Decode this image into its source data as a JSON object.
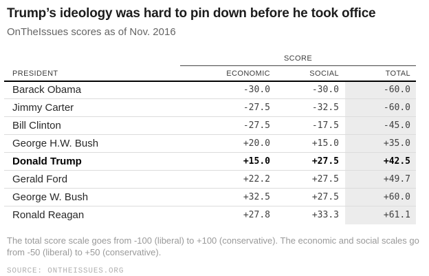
{
  "header": {
    "title": "Trump’s ideology was hard to pin down before he took office",
    "subtitle": "OnTheIssues scores as of Nov. 2016"
  },
  "table": {
    "score_group_label": "SCORE",
    "columns": {
      "president": "PRESIDENT",
      "economic": "ECONOMIC",
      "social": "SOCIAL",
      "total": "TOTAL"
    },
    "rows": [
      {
        "president": "Barack Obama",
        "economic": "-30.0",
        "social": "-30.0",
        "total": "-60.0",
        "bold": false
      },
      {
        "president": "Jimmy Carter",
        "economic": "-27.5",
        "social": "-32.5",
        "total": "-60.0",
        "bold": false
      },
      {
        "president": "Bill Clinton",
        "economic": "-27.5",
        "social": "-17.5",
        "total": "-45.0",
        "bold": false
      },
      {
        "president": "George H.W. Bush",
        "economic": "+20.0",
        "social": "+15.0",
        "total": "+35.0",
        "bold": false
      },
      {
        "president": "Donald Trump",
        "economic": "+15.0",
        "social": "+27.5",
        "total": "+42.5",
        "bold": true
      },
      {
        "president": "Gerald Ford",
        "economic": "+22.2",
        "social": "+27.5",
        "total": "+49.7",
        "bold": false
      },
      {
        "president": "George W. Bush",
        "economic": "+32.5",
        "social": "+27.5",
        "total": "+60.0",
        "bold": false
      },
      {
        "president": "Ronald Reagan",
        "economic": "+27.8",
        "social": "+33.3",
        "total": "+61.1",
        "bold": false
      }
    ]
  },
  "footer": {
    "note": "The total score scale goes from -100 (liberal) to +100 (conservative). The economic and social scales go from -50 (liberal) to +50 (conservative).",
    "source": "SOURCE: ONTHEISSUES.ORG"
  },
  "colors": {
    "title_text": "#1c1c1c",
    "subtitle_text": "#646464",
    "header_text": "#3c3c3c",
    "row_text": "#282828",
    "number_text": "#404040",
    "highlight_text": "#000000",
    "row_separator": "#dcdcdc",
    "header_rule": "#000000",
    "score_rule": "#444444",
    "total_column_bg": "#ececec",
    "note_text": "#999999",
    "source_text": "#b1b1b1"
  },
  "chart_data": {
    "type": "table",
    "title": "Trump’s ideology was hard to pin down before he took office",
    "subtitle": "OnTheIssues scores as of Nov. 2016",
    "columns": [
      "PRESIDENT",
      "ECONOMIC",
      "SOCIAL",
      "TOTAL"
    ],
    "column_group": {
      "label": "SCORE",
      "spans": [
        "ECONOMIC",
        "SOCIAL",
        "TOTAL"
      ]
    },
    "categories": [
      "Barack Obama",
      "Jimmy Carter",
      "Bill Clinton",
      "George H.W. Bush",
      "Donald Trump",
      "Gerald Ford",
      "George W. Bush",
      "Ronald Reagan"
    ],
    "series": [
      {
        "name": "Economic",
        "values": [
          -30.0,
          -27.5,
          -27.5,
          20.0,
          15.0,
          22.2,
          32.5,
          27.8
        ]
      },
      {
        "name": "Social",
        "values": [
          -30.0,
          -32.5,
          -17.5,
          15.0,
          27.5,
          27.5,
          27.5,
          33.3
        ]
      },
      {
        "name": "Total",
        "values": [
          -60.0,
          -60.0,
          -45.0,
          35.0,
          42.5,
          49.7,
          60.0,
          61.1
        ]
      }
    ],
    "highlighted_row": "Donald Trump",
    "scale_note": "Total: -100 (liberal) to +100 (conservative); Economic/Social: -50 (liberal) to +50 (conservative)",
    "source": "ONTHEISSUES.ORG"
  }
}
